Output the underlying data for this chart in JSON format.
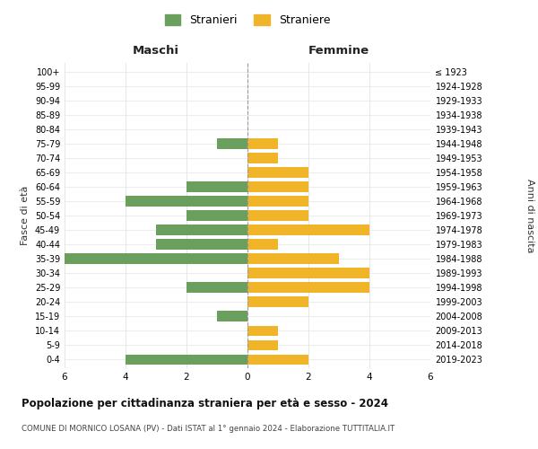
{
  "age_groups": [
    "100+",
    "95-99",
    "90-94",
    "85-89",
    "80-84",
    "75-79",
    "70-74",
    "65-69",
    "60-64",
    "55-59",
    "50-54",
    "45-49",
    "40-44",
    "35-39",
    "30-34",
    "25-29",
    "20-24",
    "15-19",
    "10-14",
    "5-9",
    "0-4"
  ],
  "birth_years": [
    "≤ 1923",
    "1924-1928",
    "1929-1933",
    "1934-1938",
    "1939-1943",
    "1944-1948",
    "1949-1953",
    "1954-1958",
    "1959-1963",
    "1964-1968",
    "1969-1973",
    "1974-1978",
    "1979-1983",
    "1984-1988",
    "1989-1993",
    "1994-1998",
    "1999-2003",
    "2004-2008",
    "2009-2013",
    "2014-2018",
    "2019-2023"
  ],
  "males": [
    0,
    0,
    0,
    0,
    0,
    1,
    0,
    0,
    2,
    4,
    2,
    3,
    3,
    6,
    0,
    2,
    0,
    1,
    0,
    0,
    4
  ],
  "females": [
    0,
    0,
    0,
    0,
    0,
    1,
    1,
    2,
    2,
    2,
    2,
    4,
    1,
    3,
    4,
    4,
    2,
    0,
    1,
    1,
    2
  ],
  "male_color": "#6a9f5e",
  "female_color": "#f0b429",
  "title": "Popolazione per cittadinanza straniera per età e sesso - 2024",
  "subtitle": "COMUNE DI MORNICO LOSANA (PV) - Dati ISTAT al 1° gennaio 2024 - Elaborazione TUTTITALIA.IT",
  "xlabel_left": "Maschi",
  "xlabel_right": "Femmine",
  "ylabel_left": "Fasce di età",
  "ylabel_right": "Anni di nascita",
  "legend_male": "Stranieri",
  "legend_female": "Straniere",
  "xlim": 6,
  "background_color": "#ffffff",
  "grid_color": "#dddddd"
}
